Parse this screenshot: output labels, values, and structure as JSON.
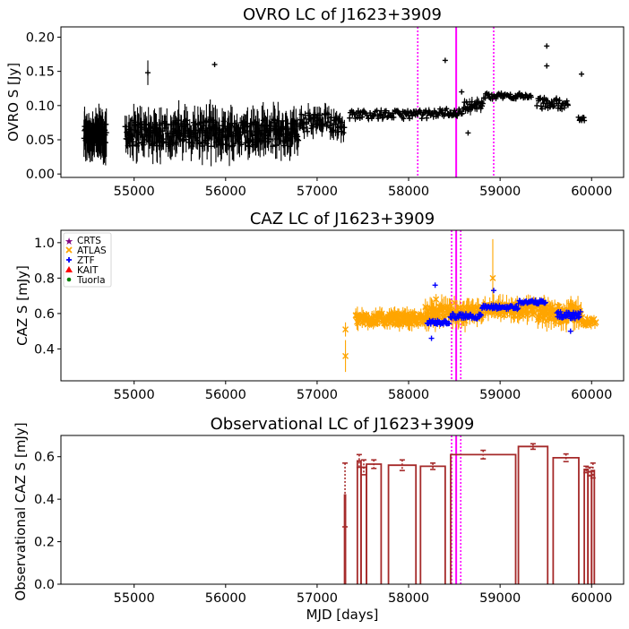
{
  "colors": {
    "ovro": "#000000",
    "atlas": "#ffa500",
    "ztf": "#0000ff",
    "crts": "#800080",
    "kait": "#ff0000",
    "tuorla": "#008000",
    "obs": "#a52a2a",
    "event_solid": "#ff00ff",
    "event_dotted": "#ff00ff"
  },
  "x_axis": {
    "label": "MJD [days]",
    "range": [
      54200,
      60350
    ],
    "ticks": [
      55000,
      56000,
      57000,
      58000,
      59000,
      60000
    ],
    "tick_labels": [
      "55000",
      "56000",
      "57000",
      "58000",
      "59000",
      "60000"
    ]
  },
  "chart_data": [
    {
      "id": "ovro",
      "type": "scatter",
      "title": "OVRO LC of J1623+3909",
      "ylabel": "OVRO S [Jy]",
      "ylim": [
        -0.005,
        0.215
      ],
      "yticks": [
        0.0,
        0.05,
        0.1,
        0.15,
        0.2
      ],
      "ytick_labels": [
        "0.00",
        "0.05",
        "0.10",
        "0.15",
        "0.20"
      ],
      "event_lines": {
        "solid": 58520,
        "dotted": [
          58100,
          58930
        ]
      },
      "series": [
        {
          "name": "OVRO",
          "marker": "plus",
          "color": "#000000",
          "segments": [
            {
              "x0": 54450,
              "x1": 54700,
              "base": 0.058,
              "amp": 0.015,
              "err": 0.03,
              "n": 60
            },
            {
              "x0": 54900,
              "x1": 56800,
              "base": 0.06,
              "amp": 0.02,
              "err": 0.025,
              "n": 280
            },
            {
              "x0": 56800,
              "x1": 57300,
              "base": 0.075,
              "amp": 0.015,
              "err": 0.015,
              "n": 60
            },
            {
              "x0": 57350,
              "x1": 58300,
              "base": 0.087,
              "amp": 0.006,
              "err": 0.005,
              "n": 90
            },
            {
              "x0": 58300,
              "x1": 58600,
              "base": 0.09,
              "amp": 0.006,
              "err": 0.005,
              "n": 30
            },
            {
              "x0": 58600,
              "x1": 58820,
              "base": 0.1,
              "amp": 0.006,
              "err": 0.008,
              "n": 25
            },
            {
              "x0": 58820,
              "x1": 59350,
              "base": 0.114,
              "amp": 0.004,
              "err": 0.004,
              "n": 50
            },
            {
              "x0": 59400,
              "x1": 59750,
              "base": 0.103,
              "amp": 0.008,
              "err": 0.005,
              "n": 40
            },
            {
              "x0": 59850,
              "x1": 59930,
              "base": 0.08,
              "amp": 0.003,
              "err": 0.003,
              "n": 8
            }
          ],
          "outliers": [
            {
              "x": 55150,
              "y": 0.148,
              "err": 0.018
            },
            {
              "x": 55880,
              "y": 0.16,
              "err": 0.0
            },
            {
              "x": 58400,
              "y": 0.166,
              "err": 0.0
            },
            {
              "x": 59510,
              "y": 0.187,
              "err": 0.0
            },
            {
              "x": 59510,
              "y": 0.158,
              "err": 0.0
            },
            {
              "x": 59890,
              "y": 0.146,
              "err": 0.0
            },
            {
              "x": 58650,
              "y": 0.06,
              "err": 0.0
            },
            {
              "x": 58580,
              "y": 0.12,
              "err": 0.0
            }
          ]
        }
      ]
    },
    {
      "id": "caz",
      "type": "scatter",
      "title": "CAZ LC of J1623+3909",
      "ylabel": "CAZ S [mJy]",
      "ylim": [
        0.22,
        1.07
      ],
      "yticks": [
        0.4,
        0.6,
        0.8,
        1.0
      ],
      "ytick_labels": [
        "0.4",
        "0.6",
        "0.8",
        "1.0"
      ],
      "event_lines": {
        "solid": 58520,
        "dotted": [
          58470,
          58570
        ]
      },
      "legend": {
        "position": "upper-left",
        "entries": [
          {
            "label": "CRTS",
            "marker": "star",
            "color": "#800080"
          },
          {
            "label": "ATLAS",
            "marker": "x",
            "color": "#ffa500"
          },
          {
            "label": "ZTF",
            "marker": "plus",
            "color": "#0000ff"
          },
          {
            "label": "KAIT",
            "marker": "triangle",
            "color": "#ff0000"
          },
          {
            "label": "Tuorla",
            "marker": "dot",
            "color": "#008000"
          }
        ]
      },
      "series": [
        {
          "name": "ATLAS",
          "marker": "x",
          "color": "#ffa500",
          "segments": [
            {
              "x0": 57420,
              "x1": 58150,
              "base": 0.57,
              "amp": 0.03,
              "err": 0.04,
              "n": 110
            },
            {
              "x0": 58150,
              "x1": 58800,
              "base": 0.6,
              "amp": 0.04,
              "err": 0.06,
              "n": 80
            },
            {
              "x0": 58800,
              "x1": 59400,
              "base": 0.62,
              "amp": 0.035,
              "err": 0.05,
              "n": 80
            },
            {
              "x0": 59400,
              "x1": 59900,
              "base": 0.6,
              "amp": 0.045,
              "err": 0.06,
              "n": 70
            },
            {
              "x0": 59900,
              "x1": 60050,
              "base": 0.55,
              "amp": 0.02,
              "err": 0.03,
              "n": 15
            }
          ],
          "outliers": [
            {
              "x": 57310,
              "y": 0.51,
              "err": 0.04
            },
            {
              "x": 57310,
              "y": 0.36,
              "err": 0.09
            },
            {
              "x": 58920,
              "y": 0.8,
              "err": 0.22
            },
            {
              "x": 58300,
              "y": 0.68,
              "err": 0.03
            },
            {
              "x": 58500,
              "y": 0.66,
              "err": 0.04
            }
          ]
        },
        {
          "name": "ZTF",
          "marker": "plus",
          "color": "#0000ff",
          "segments": [
            {
              "x0": 58200,
              "x1": 58450,
              "base": 0.55,
              "amp": 0.012,
              "err": 0.01,
              "n": 30
            },
            {
              "x0": 58450,
              "x1": 58800,
              "base": 0.585,
              "amp": 0.015,
              "err": 0.01,
              "n": 40
            },
            {
              "x0": 58800,
              "x1": 59200,
              "base": 0.635,
              "amp": 0.012,
              "err": 0.01,
              "n": 50
            },
            {
              "x0": 59200,
              "x1": 59500,
              "base": 0.665,
              "amp": 0.01,
              "err": 0.01,
              "n": 40
            },
            {
              "x0": 59620,
              "x1": 59880,
              "base": 0.59,
              "amp": 0.02,
              "err": 0.01,
              "n": 40
            }
          ],
          "outliers": [
            {
              "x": 58290,
              "y": 0.76,
              "err": 0.0
            },
            {
              "x": 58250,
              "y": 0.46,
              "err": 0.0
            },
            {
              "x": 58930,
              "y": 0.73,
              "err": 0.0
            },
            {
              "x": 59770,
              "y": 0.5,
              "err": 0.0
            }
          ]
        }
      ]
    },
    {
      "id": "obs",
      "type": "bar",
      "title": "Observational LC of J1623+3909",
      "xlabel": "MJD [days]",
      "ylabel": "Observational CAZ S [mJy]",
      "ylim": [
        0.0,
        0.7
      ],
      "yticks": [
        0.0,
        0.2,
        0.4,
        0.6
      ],
      "ytick_labels": [
        "0.0",
        "0.2",
        "0.4",
        "0.6"
      ],
      "event_lines": {
        "solid": 58520,
        "dotted": [
          58470,
          58570
        ]
      },
      "blocks": [
        {
          "x0": 57300,
          "x1": 57310,
          "value": 0.42,
          "err": 0.15
        },
        {
          "x0": 57440,
          "x1": 57480,
          "value": 0.58,
          "err": 0.03
        },
        {
          "x0": 57480,
          "x1": 57540,
          "value": 0.55,
          "err": 0.035
        },
        {
          "x0": 57540,
          "x1": 57700,
          "value": 0.565,
          "err": 0.02
        },
        {
          "x0": 57780,
          "x1": 58080,
          "value": 0.56,
          "err": 0.025
        },
        {
          "x0": 58130,
          "x1": 58400,
          "value": 0.555,
          "err": 0.015
        },
        {
          "x0": 58460,
          "x1": 59170,
          "value": 0.61,
          "err": 0.02
        },
        {
          "x0": 59200,
          "x1": 59520,
          "value": 0.648,
          "err": 0.013
        },
        {
          "x0": 59580,
          "x1": 59860,
          "value": 0.595,
          "err": 0.018
        },
        {
          "x0": 59920,
          "x1": 59960,
          "value": 0.54,
          "err": 0.015
        },
        {
          "x0": 59960,
          "x1": 60000,
          "value": 0.53,
          "err": 0.02
        },
        {
          "x0": 60000,
          "x1": 60030,
          "value": 0.535,
          "err": 0.035
        }
      ]
    }
  ]
}
